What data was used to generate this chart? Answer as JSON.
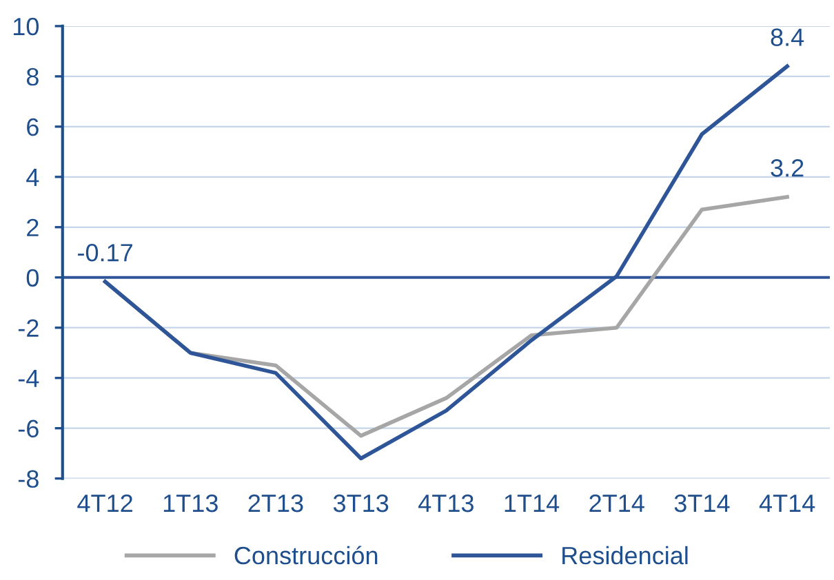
{
  "chart_data": {
    "type": "line",
    "categories": [
      "4T12",
      "1T13",
      "2T13",
      "3T13",
      "4T13",
      "1T14",
      "2T14",
      "3T14",
      "4T14"
    ],
    "series": [
      {
        "name": "Construcción",
        "color": "#a6a6a6",
        "values": [
          -0.17,
          -3.0,
          -3.5,
          -6.3,
          -4.8,
          -2.3,
          -2.0,
          2.7,
          3.2
        ]
      },
      {
        "name": "Residencial",
        "color": "#2e5597",
        "values": [
          -0.17,
          -3.0,
          -3.8,
          -7.2,
          -5.3,
          -2.5,
          0.05,
          5.7,
          8.4
        ]
      }
    ],
    "ylim": [
      -8,
      10
    ],
    "yticks": [
      -8,
      -6,
      -4,
      -2,
      0,
      2,
      4,
      6,
      8,
      10
    ],
    "grid": "y",
    "legend": "bottom",
    "marker": "none",
    "line_style": "solid",
    "ref_lines": [
      {
        "axis": "y",
        "value": 0,
        "color": "#2e5597"
      }
    ],
    "annotations": [
      {
        "text": "-0.17",
        "x": "4T12",
        "y": -0.17
      },
      {
        "text": "8.4",
        "x": "4T14",
        "y": 8.4
      },
      {
        "text": "3.2",
        "x": "4T14",
        "y": 3.2
      }
    ]
  }
}
